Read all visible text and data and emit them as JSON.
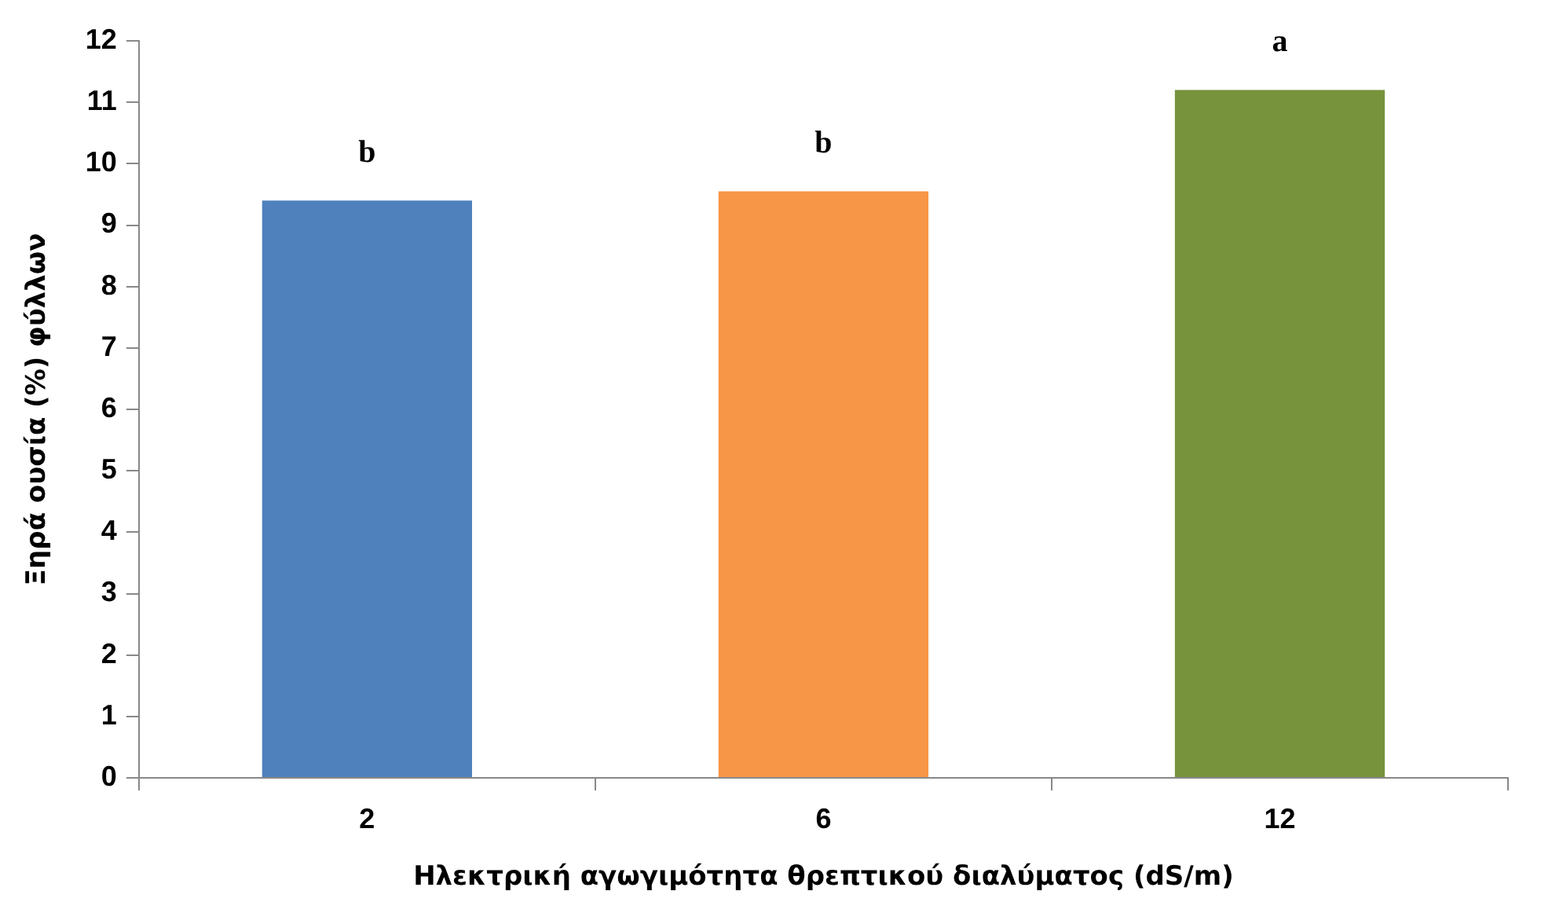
{
  "chart_data": {
    "type": "bar",
    "xlabel": "Ηλεκτρική αγωγιμότητα θρεπτικού διαλύματος (dS/m)",
    "ylabel": "Ξηρά ουσία (%) φύλλων",
    "categories": [
      "2",
      "6",
      "12"
    ],
    "values": [
      9.4,
      9.55,
      11.2
    ],
    "colors": [
      "#4f81bd",
      "#f79646",
      "#77933c"
    ],
    "ylim": [
      0,
      12
    ],
    "yticks": [
      0,
      1,
      2,
      3,
      4,
      5,
      6,
      7,
      8,
      9,
      10,
      11,
      12
    ],
    "grid": false,
    "legend": false,
    "annotations": [
      "b",
      "b",
      "a"
    ]
  }
}
